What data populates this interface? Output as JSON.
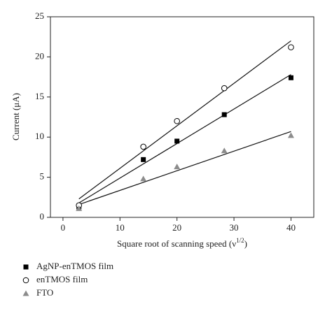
{
  "chart_data": {
    "type": "scatter",
    "xlabel": {
      "text": "Square root of scanning speed (ν",
      "sup": "1/2",
      "end": ")"
    },
    "ylabel": "Current (μA)",
    "x": [
      2.8,
      14.1,
      20,
      28.3,
      40
    ],
    "fit_x": [
      2.8,
      40
    ],
    "series": [
      {
        "name": "AgNP-enTMOS film",
        "color": "#000000",
        "marker": "square",
        "values": [
          1.3,
          7.2,
          9.5,
          12.8,
          17.4
        ],
        "fit": [
          1.8,
          17.8
        ]
      },
      {
        "name": "enTMOS film",
        "color": "#000000",
        "marker": "open-circle",
        "values": [
          1.5,
          8.8,
          12.0,
          16.1,
          21.2
        ],
        "fit": [
          2.3,
          22.0
        ]
      },
      {
        "name": "FTO",
        "color": "#8c8c8c",
        "marker": "triangle",
        "values": [
          1.1,
          4.8,
          6.3,
          8.3,
          10.2
        ],
        "fit": [
          1.6,
          10.7
        ]
      }
    ],
    "xlim": [
      -2.2,
      44
    ],
    "ylim": [
      0,
      25
    ],
    "xticks": [
      0,
      10,
      20,
      30,
      40
    ],
    "yticks": [
      0,
      5,
      10,
      15,
      20,
      25
    ]
  }
}
